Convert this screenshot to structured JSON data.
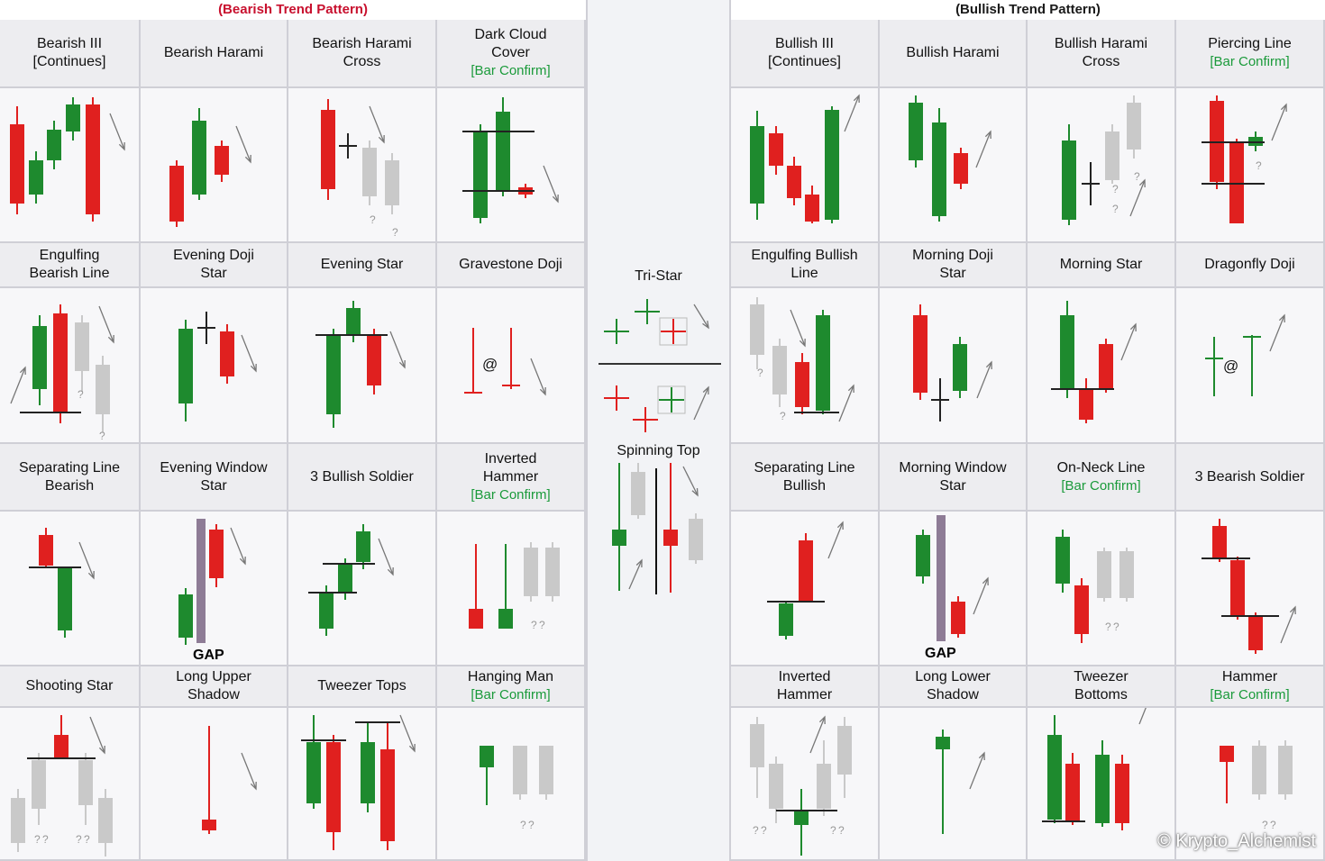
{
  "colors": {
    "bull": "#1e8a2e",
    "bear": "#e0201f",
    "neutral": "#c9c9c9",
    "line": "#222222",
    "bear_title": "#c8102e",
    "bull_title": "#1a1a1a",
    "confirm": "#1a9a3a"
  },
  "bearish": {
    "title": "(Bearish Trend Pattern)",
    "cells": [
      {
        "lines": [
          "Bearish III",
          "[Continues]"
        ],
        "confirm": "",
        "pattern": "bearish-three-continues"
      },
      {
        "lines": [
          "Bearish Harami"
        ],
        "confirm": "",
        "pattern": "bearish-harami"
      },
      {
        "lines": [
          "Bearish Harami",
          "Cross"
        ],
        "confirm": "",
        "pattern": "bearish-harami-cross"
      },
      {
        "lines": [
          "Dark Cloud",
          "Cover"
        ],
        "confirm": "[Bar Confirm]",
        "pattern": "dark-cloud-cover"
      },
      {
        "lines": [
          "Engulfing",
          "Bearish Line"
        ],
        "confirm": "",
        "pattern": "engulfing-bearish-line"
      },
      {
        "lines": [
          "Evening Doji",
          "Star"
        ],
        "confirm": "",
        "pattern": "evening-doji-star"
      },
      {
        "lines": [
          "Evening Star"
        ],
        "confirm": "",
        "pattern": "evening-star"
      },
      {
        "lines": [
          "Gravestone Doji"
        ],
        "confirm": "",
        "pattern": "gravestone-doji"
      },
      {
        "lines": [
          "Separating Line",
          "Bearish"
        ],
        "confirm": "",
        "pattern": "separating-line-bearish"
      },
      {
        "lines": [
          "Evening Window",
          "Star"
        ],
        "confirm": "",
        "pattern": "evening-window-star"
      },
      {
        "lines": [
          "3 Bullish Soldier"
        ],
        "confirm": "",
        "pattern": "three-bullish-soldier"
      },
      {
        "lines": [
          "Inverted",
          "Hammer"
        ],
        "confirm": "[Bar Confirm]",
        "pattern": "inverted-hammer-bear"
      },
      {
        "lines": [
          "Shooting Star"
        ],
        "confirm": "",
        "pattern": "shooting-star"
      },
      {
        "lines": [
          "Long Upper",
          "Shadow"
        ],
        "confirm": "",
        "pattern": "long-upper-shadow"
      },
      {
        "lines": [
          "Tweezer Tops"
        ],
        "confirm": "",
        "pattern": "tweezer-tops"
      },
      {
        "lines": [
          "Hanging Man"
        ],
        "confirm": "[Bar Confirm]",
        "pattern": "hanging-man"
      }
    ]
  },
  "bullish": {
    "title": "(Bullish Trend Pattern)",
    "cells": [
      {
        "lines": [
          "Bullish III",
          "[Continues]"
        ],
        "confirm": "",
        "pattern": "bullish-three-continues"
      },
      {
        "lines": [
          "Bullish Harami"
        ],
        "confirm": "",
        "pattern": "bullish-harami"
      },
      {
        "lines": [
          "Bullish Harami",
          "Cross"
        ],
        "confirm": "",
        "pattern": "bullish-harami-cross"
      },
      {
        "lines": [
          "Piercing Line"
        ],
        "confirm": "[Bar Confirm]",
        "pattern": "piercing-line"
      },
      {
        "lines": [
          "Engulfing Bullish",
          "Line"
        ],
        "confirm": "",
        "pattern": "engulfing-bullish-line"
      },
      {
        "lines": [
          "Morning Doji",
          "Star"
        ],
        "confirm": "",
        "pattern": "morning-doji-star"
      },
      {
        "lines": [
          "Morning Star"
        ],
        "confirm": "",
        "pattern": "morning-star"
      },
      {
        "lines": [
          "Dragonfly Doji"
        ],
        "confirm": "",
        "pattern": "dragonfly-doji"
      },
      {
        "lines": [
          "Separating Line",
          "Bullish"
        ],
        "confirm": "",
        "pattern": "separating-line-bullish"
      },
      {
        "lines": [
          "Morning Window",
          "Star"
        ],
        "confirm": "",
        "pattern": "morning-window-star"
      },
      {
        "lines": [
          "On-Neck Line"
        ],
        "confirm": "[Bar Confirm]",
        "pattern": "on-neck-line"
      },
      {
        "lines": [
          "3 Bearish Soldier"
        ],
        "confirm": "",
        "pattern": "three-bearish-soldier"
      },
      {
        "lines": [
          "Inverted",
          "Hammer"
        ],
        "confirm": "",
        "pattern": "inverted-hammer-bull"
      },
      {
        "lines": [
          "Long Lower",
          "Shadow"
        ],
        "confirm": "",
        "pattern": "long-lower-shadow"
      },
      {
        "lines": [
          "Tweezer",
          "Bottoms"
        ],
        "confirm": "",
        "pattern": "tweezer-bottoms"
      },
      {
        "lines": [
          "Hammer"
        ],
        "confirm": "[Bar Confirm]",
        "pattern": "hammer"
      }
    ]
  },
  "middle": {
    "tri_star": "Tri-Star",
    "spinning_top": "Spinning Top"
  },
  "gap_text": "GAP",
  "question_mark": "?",
  "doji_symbol": "@",
  "watermark": "© Krypto_Alchemist"
}
